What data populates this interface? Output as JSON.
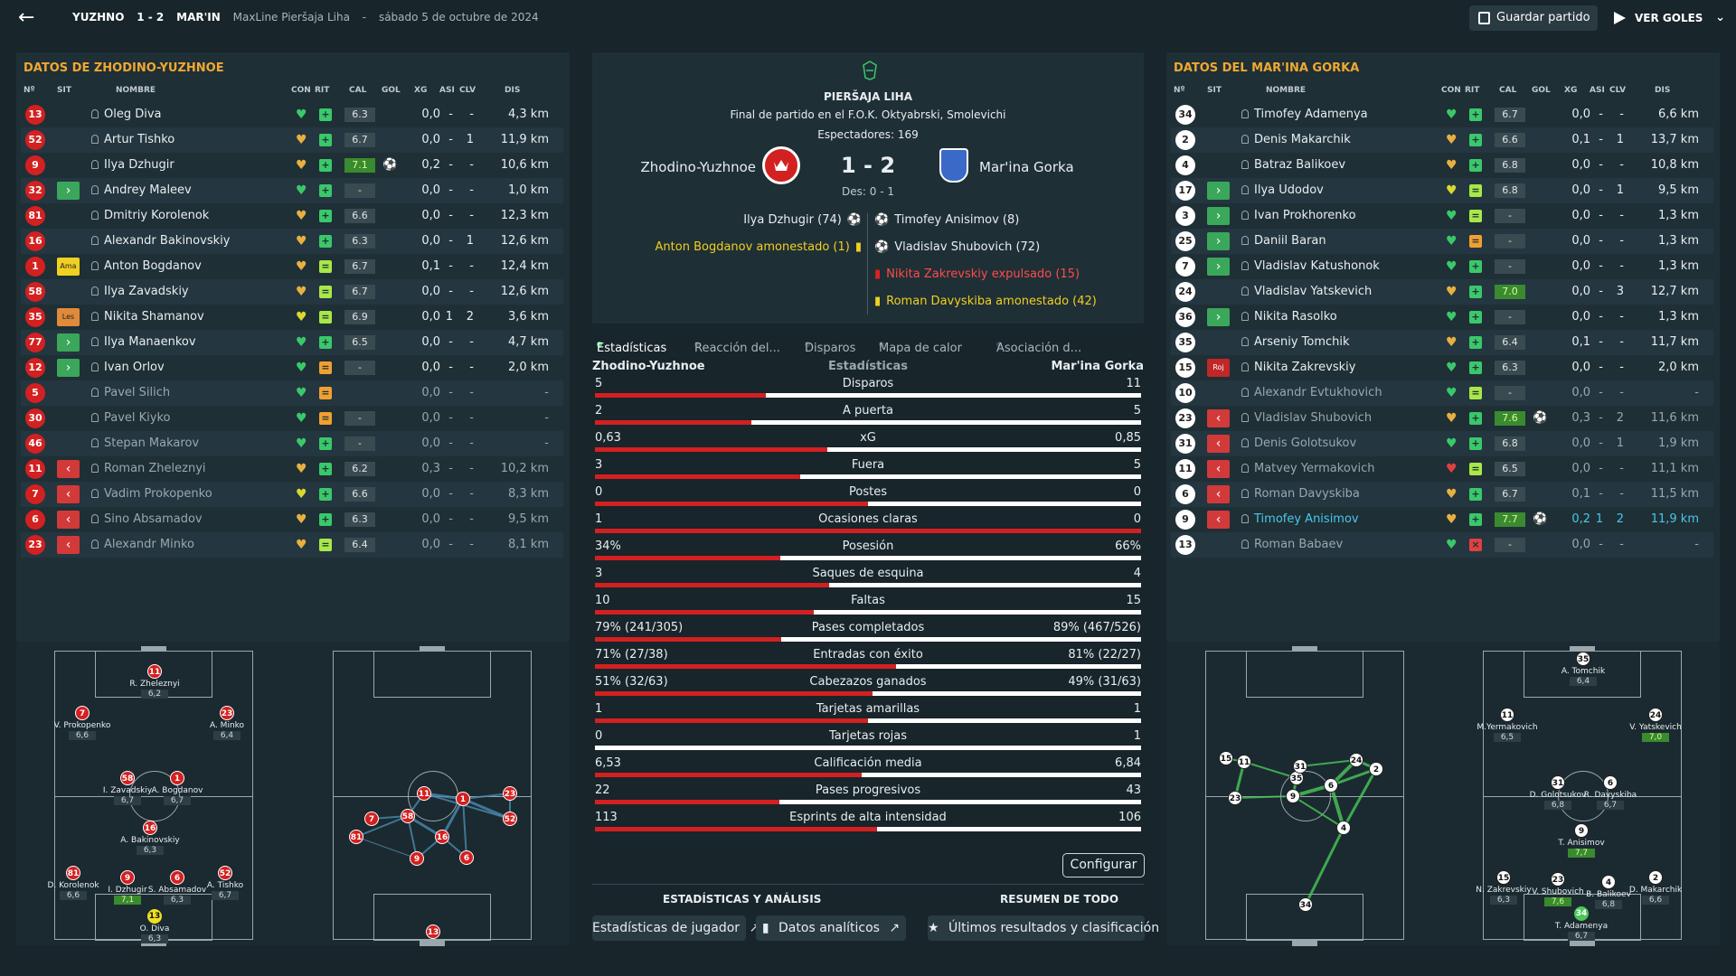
{
  "topbar": {
    "home_short": "YUZHNO",
    "score": "1 - 2",
    "away_short": "MAR'IN",
    "competition": "MaxLine Pieršaja Liha",
    "sep": "-",
    "date": "sábado 5 de octubre de 2024",
    "save_label": "Guardar partido",
    "goals_label": "VER GOLES"
  },
  "left_team": {
    "title": "DATOS DE ZHODINO-YUZHNOE",
    "headers": [
      "Nº",
      "SIT",
      "NOMBRE",
      "CON",
      "RIT",
      "CAL",
      "GOL",
      "XG",
      "ASI",
      "CLV",
      "DIS"
    ],
    "players": [
      {
        "n": "13",
        "sit": "",
        "name": "Oleg Diva",
        "con": "g",
        "rit": "up",
        "cal": "6.3",
        "gol": "",
        "xg": "0,0",
        "asi": "-",
        "clv": "-",
        "dis": "4,3 km"
      },
      {
        "n": "52",
        "sit": "",
        "name": "Artur Tishko",
        "con": "o",
        "rit": "up",
        "cal": "6.7",
        "gol": "",
        "xg": "0,0",
        "asi": "-",
        "clv": "1",
        "dis": "11,9 km"
      },
      {
        "n": "9",
        "sit": "",
        "name": "Ilya Dzhugir",
        "con": "o",
        "rit": "up",
        "cal": "7.1",
        "calg": true,
        "gol": "ball",
        "xg": "0,2",
        "asi": "-",
        "clv": "-",
        "dis": "10,6 km"
      },
      {
        "n": "32",
        "sit": "in",
        "name": "Andrey Maleev",
        "con": "g",
        "rit": "up",
        "cal": "-",
        "gol": "",
        "xg": "0,0",
        "asi": "-",
        "clv": "-",
        "dis": "1,0 km"
      },
      {
        "n": "81",
        "sit": "",
        "name": "Dmitriy Korolenok",
        "con": "o",
        "rit": "up",
        "cal": "6.6",
        "gol": "",
        "xg": "0,0",
        "asi": "-",
        "clv": "-",
        "dis": "12,3 km"
      },
      {
        "n": "16",
        "sit": "",
        "name": "Alexandr Bakinovskiy",
        "con": "o",
        "rit": "up",
        "cal": "6.3",
        "gol": "",
        "xg": "0,0",
        "asi": "-",
        "clv": "1",
        "dis": "12,6 km"
      },
      {
        "n": "1",
        "sit": "ama",
        "sit_label": "Ama",
        "name": "Anton Bogdanov",
        "con": "o",
        "rit": "eq",
        "cal": "6.7",
        "gol": "",
        "xg": "0,1",
        "asi": "-",
        "clv": "-",
        "dis": "12,4 km"
      },
      {
        "n": "58",
        "sit": "",
        "name": "Ilya Zavadskiy",
        "con": "o",
        "rit": "eq",
        "cal": "6.7",
        "gol": "",
        "xg": "0,0",
        "asi": "-",
        "clv": "-",
        "dis": "12,6 km"
      },
      {
        "n": "35",
        "sit": "les",
        "sit_label": "Les",
        "name": "Nikita Shamanov",
        "con": "y",
        "rit": "eq",
        "cal": "6.9",
        "gol": "",
        "xg": "0,0",
        "asi": "1",
        "clv": "2",
        "dis": "3,6 km"
      },
      {
        "n": "77",
        "sit": "in",
        "name": "Ilya Manaenkov",
        "con": "g",
        "rit": "up",
        "cal": "6.5",
        "gol": "",
        "xg": "0,0",
        "asi": "-",
        "clv": "-",
        "dis": "4,7 km"
      },
      {
        "n": "12",
        "sit": "in",
        "name": "Ivan Orlov",
        "con": "g",
        "rit": "or",
        "cal": "-",
        "gol": "",
        "xg": "0,0",
        "asi": "-",
        "clv": "-",
        "dis": "2,0 km"
      },
      {
        "n": "5",
        "sit": "",
        "name": "Pavel Silich",
        "con": "g",
        "rit": "or",
        "cal": "",
        "gol": "",
        "xg": "0,0",
        "asi": "-",
        "clv": "-",
        "dis": "-",
        "dim": true
      },
      {
        "n": "30",
        "sit": "",
        "name": "Pavel Kiyko",
        "con": "g",
        "rit": "or",
        "cal": "-",
        "gol": "",
        "xg": "0,0",
        "asi": "-",
        "clv": "-",
        "dis": "-",
        "dim": true
      },
      {
        "n": "46",
        "sit": "",
        "name": "Stepan Makarov",
        "con": "g",
        "rit": "up",
        "cal": "-",
        "gol": "",
        "xg": "0,0",
        "asi": "-",
        "clv": "-",
        "dis": "-",
        "dim": true
      },
      {
        "n": "11",
        "sit": "out",
        "name": "Roman Zheleznyi",
        "con": "o",
        "rit": "up",
        "cal": "6.2",
        "gol": "",
        "xg": "0,3",
        "asi": "-",
        "clv": "-",
        "dis": "10,2 km",
        "dim": true
      },
      {
        "n": "7",
        "sit": "out",
        "name": "Vadim Prokopenko",
        "con": "y",
        "rit": "up",
        "cal": "6.6",
        "gol": "",
        "xg": "0,0",
        "asi": "-",
        "clv": "-",
        "dis": "8,3 km",
        "dim": true
      },
      {
        "n": "6",
        "sit": "out",
        "name": "Sino Absamadov",
        "con": "o",
        "rit": "up",
        "cal": "6.3",
        "gol": "",
        "xg": "0,0",
        "asi": "-",
        "clv": "-",
        "dis": "9,5 km",
        "dim": true
      },
      {
        "n": "23",
        "sit": "out",
        "name": "Alexandr Minko",
        "con": "o",
        "rit": "eq",
        "cal": "6.4",
        "gol": "",
        "xg": "0,0",
        "asi": "-",
        "clv": "-",
        "dis": "8,1 km",
        "dim": true
      }
    ]
  },
  "right_team": {
    "title": "DATOS DEL MAR'INA GORKA",
    "headers": [
      "Nº",
      "SIT",
      "NOMBRE",
      "CON",
      "RIT",
      "CAL",
      "GOL",
      "XG",
      "ASI",
      "CLV",
      "DIS"
    ],
    "players": [
      {
        "n": "34",
        "sit": "",
        "name": "Timofey Adamenya",
        "con": "g",
        "rit": "up",
        "cal": "6.7",
        "gol": "",
        "xg": "0,0",
        "asi": "-",
        "clv": "-",
        "dis": "6,6 km"
      },
      {
        "n": "2",
        "sit": "",
        "name": "Denis Makarchik",
        "con": "o",
        "rit": "up",
        "cal": "6.6",
        "gol": "",
        "xg": "0,1",
        "asi": "-",
        "clv": "1",
        "dis": "13,7 km"
      },
      {
        "n": "4",
        "sit": "",
        "name": "Batraz Balikoev",
        "con": "o",
        "rit": "up",
        "cal": "6.8",
        "gol": "",
        "xg": "0,0",
        "asi": "-",
        "clv": "-",
        "dis": "10,8 km"
      },
      {
        "n": "17",
        "sit": "in",
        "name": "Ilya Udodov",
        "con": "y",
        "rit": "eq",
        "cal": "6.8",
        "gol": "",
        "xg": "0,0",
        "asi": "-",
        "clv": "1",
        "dis": "9,5 km"
      },
      {
        "n": "3",
        "sit": "in",
        "name": "Ivan Prokhorenko",
        "con": "g",
        "rit": "eq",
        "cal": "-",
        "gol": "",
        "xg": "0,0",
        "asi": "-",
        "clv": "-",
        "dis": "1,3 km"
      },
      {
        "n": "25",
        "sit": "in",
        "name": "Daniil Baran",
        "con": "g",
        "rit": "or",
        "cal": "-",
        "gol": "",
        "xg": "0,0",
        "asi": "-",
        "clv": "-",
        "dis": "1,3 km"
      },
      {
        "n": "7",
        "sit": "in",
        "name": "Vladislav Katushonok",
        "con": "g",
        "rit": "up",
        "cal": "-",
        "gol": "",
        "xg": "0,0",
        "asi": "-",
        "clv": "-",
        "dis": "1,3 km"
      },
      {
        "n": "24",
        "sit": "",
        "name": "Vladislav Yatskevich",
        "con": "o",
        "rit": "up",
        "cal": "7.0",
        "calg": true,
        "gol": "",
        "xg": "0,0",
        "asi": "-",
        "clv": "3",
        "dis": "12,7 km"
      },
      {
        "n": "36",
        "sit": "in",
        "name": "Nikita Rasolko",
        "con": "g",
        "rit": "up",
        "cal": "-",
        "gol": "",
        "xg": "0,0",
        "asi": "-",
        "clv": "-",
        "dis": "1,3 km"
      },
      {
        "n": "35",
        "sit": "",
        "name": "Arseniy Tomchik",
        "con": "o",
        "rit": "up",
        "cal": "6.4",
        "gol": "",
        "xg": "0,1",
        "asi": "-",
        "clv": "-",
        "dis": "11,7 km"
      },
      {
        "n": "15",
        "sit": "roj",
        "sit_label": "Roj",
        "name": "Nikita Zakrevskiy",
        "con": "g",
        "rit": "up",
        "cal": "6.3",
        "gol": "",
        "xg": "0,0",
        "asi": "-",
        "clv": "-",
        "dis": "2,0 km"
      },
      {
        "n": "10",
        "sit": "",
        "name": "Alexandr Evtukhovich",
        "con": "g",
        "rit": "eq",
        "cal": "-",
        "gol": "",
        "xg": "0,0",
        "asi": "-",
        "clv": "-",
        "dis": "-",
        "dim": true
      },
      {
        "n": "23",
        "sit": "out",
        "name": "Vladislav Shubovich",
        "con": "o",
        "rit": "up",
        "cal": "7.6",
        "calg": true,
        "gol": "ball",
        "xg": "0,3",
        "asi": "-",
        "clv": "2",
        "dis": "11,6 km",
        "dim": true
      },
      {
        "n": "31",
        "sit": "out",
        "name": "Denis Golotsukov",
        "con": "g",
        "rit": "up",
        "cal": "6.8",
        "gol": "",
        "xg": "0,0",
        "asi": "-",
        "clv": "1",
        "dis": "1,9 km",
        "dim": true
      },
      {
        "n": "11",
        "sit": "out",
        "name": "Matvey Yermakovich",
        "con": "r",
        "rit": "eq",
        "cal": "6.5",
        "gol": "",
        "xg": "0,0",
        "asi": "-",
        "clv": "-",
        "dis": "11,1 km",
        "dim": true
      },
      {
        "n": "6",
        "sit": "out",
        "name": "Roman Davyskiba",
        "con": "o",
        "rit": "up",
        "cal": "6.7",
        "gol": "",
        "xg": "0,1",
        "asi": "-",
        "clv": "-",
        "dis": "11,5 km",
        "dim": true
      },
      {
        "n": "9",
        "sit": "out",
        "name": "Timofey Anisimov",
        "con": "o",
        "rit": "up",
        "cal": "7.7",
        "calg": true,
        "gol": "ball",
        "xg": "0,2",
        "asi": "1",
        "clv": "2",
        "dis": "11,9 km",
        "hl": true
      },
      {
        "n": "13",
        "sit": "",
        "name": "Roman Babaev",
        "con": "g",
        "rit": "x",
        "cal": "-",
        "gol": "",
        "xg": "0,0",
        "asi": "-",
        "clv": "-",
        "dis": "-",
        "dim": true
      }
    ]
  },
  "match": {
    "league": "PIERŠAJA LIHA",
    "venue": "Final de partido en el F.O.K. Oktyabrski, Smolevichi",
    "attendance": "Espectadores: 169",
    "home": "Zhodino-Yuzhnoe",
    "away": "Mar'ina Gorka",
    "score": "1 - 2",
    "halftime": "Des: 0 - 1",
    "home_events": [
      {
        "text": "Ilya Dzhugir (74)",
        "type": "goal"
      },
      {
        "text": "Anton Bogdanov amonestado (1)",
        "type": "yellow"
      }
    ],
    "away_events": [
      {
        "text": "Timofey Anisimov (8)",
        "type": "goal"
      },
      {
        "text": "Vladislav Shubovich (72)",
        "type": "goal"
      },
      {
        "text": "Nikita Zakrevskiy expulsado (15)",
        "type": "red"
      },
      {
        "text": "Roman Davyskiba amonestado (42)",
        "type": "yellow"
      }
    ]
  },
  "tabs": [
    "Estadísticas",
    "Reacción del...",
    "Disparos",
    "Mapa de calor",
    "Asociación d..."
  ],
  "stats": {
    "home_label": "Zhodino-Yuzhnoe",
    "center_label": "Estadísticas",
    "away_label": "Mar'ina Gorka",
    "rows": [
      {
        "label": "Disparos",
        "home": "5",
        "away": "11",
        "h": 5,
        "a": 11
      },
      {
        "label": "A puerta",
        "home": "2",
        "away": "5",
        "h": 2,
        "a": 5
      },
      {
        "label": "xG",
        "home": "0,63",
        "away": "0,85",
        "h": 0.63,
        "a": 0.85
      },
      {
        "label": "Fuera",
        "home": "3",
        "away": "5",
        "h": 3,
        "a": 5
      },
      {
        "label": "Postes",
        "home": "0",
        "away": "0",
        "h": 0,
        "a": 0
      },
      {
        "label": "Ocasiones claras",
        "home": "1",
        "away": "0",
        "h": 1,
        "a": 0
      },
      {
        "label": "Posesión",
        "home": "34%",
        "away": "66%",
        "h": 34,
        "a": 66
      },
      {
        "label": "Saques de esquina",
        "home": "3",
        "away": "4",
        "h": 3,
        "a": 4
      },
      {
        "label": "Faltas",
        "home": "10",
        "away": "15",
        "h": 10,
        "a": 15
      },
      {
        "label": "Pases completados",
        "home": "79% (241/305)",
        "away": "89% (467/526)",
        "h": 241,
        "a": 467
      },
      {
        "label": "Entradas con éxito",
        "home": "71% (27/38)",
        "away": "81% (22/27)",
        "h": 27,
        "a": 22
      },
      {
        "label": "Cabezazos ganados",
        "home": "51% (32/63)",
        "away": "49% (31/63)",
        "h": 32,
        "a": 31
      },
      {
        "label": "Tarjetas amarillas",
        "home": "1",
        "away": "1",
        "h": 1,
        "a": 1
      },
      {
        "label": "Tarjetas rojas",
        "home": "0",
        "away": "1",
        "h": 0,
        "a": 1
      },
      {
        "label": "Calificación media",
        "home": "6,53",
        "away": "6,84",
        "h": 6.53,
        "a": 6.84
      },
      {
        "label": "Pases progresivos",
        "home": "22",
        "away": "43",
        "h": 22,
        "a": 43
      },
      {
        "label": "Esprints de alta intensidad",
        "home": "113",
        "away": "106",
        "h": 113,
        "a": 106
      }
    ]
  },
  "bottom": {
    "configure": "Configurar",
    "sec1": "ESTADÍSTICAS Y ANÁLISIS",
    "sec2": "RESUMEN DE TODO",
    "btn1": "Estadísticas de jugador",
    "btn2": "Datos analíticos",
    "btn3": "Últimos resultados y clasificación"
  },
  "home_formation": [
    {
      "n": "11",
      "name": "R. Zheleznyi",
      "rt": "6,2"
    },
    {
      "n": "7",
      "name": "V. Prokopenko",
      "rt": "6,6"
    },
    {
      "n": "23",
      "name": "A. Minko",
      "rt": "6,4"
    },
    {
      "n": "58",
      "name": "I. Zavadskiy",
      "rt": "6,7"
    },
    {
      "n": "1",
      "name": "A. Bogdanov",
      "rt": "6,7"
    },
    {
      "n": "16",
      "name": "A. Bakinovskiy",
      "rt": "6,3"
    },
    {
      "n": "81",
      "name": "D. Korolenok",
      "rt": "6,6"
    },
    {
      "n": "9",
      "name": "I. Dzhugir",
      "rt": "7,1",
      "g": true
    },
    {
      "n": "6",
      "name": "S. Absamadov",
      "rt": "6,3"
    },
    {
      "n": "52",
      "name": "A. Tishko",
      "rt": "6,7"
    },
    {
      "n": "13",
      "name": "O. Diva",
      "rt": "6,3",
      "gk": true
    }
  ],
  "away_formation": [
    {
      "n": "35",
      "name": "A. Tomchik",
      "rt": "6,4"
    },
    {
      "n": "11",
      "name": "M.Yermakovich",
      "rt": "6,5"
    },
    {
      "n": "24",
      "name": "V. Yatskevich",
      "rt": "7,0",
      "g": true
    },
    {
      "n": "31",
      "name": "D. Golotsukov",
      "rt": "6,8"
    },
    {
      "n": "6",
      "name": "R. Davyskiba",
      "rt": "6,7"
    },
    {
      "n": "9",
      "name": "T. Anisimov",
      "rt": "7,7",
      "g": true
    },
    {
      "n": "15",
      "name": "N. Zakrevskiy",
      "rt": "6,3"
    },
    {
      "n": "23",
      "name": "V. Shubovich",
      "rt": "7,6",
      "g": true
    },
    {
      "n": "4",
      "name": "B. Balikoev",
      "rt": "6,8"
    },
    {
      "n": "2",
      "name": "D. Makarchik",
      "rt": "6,6"
    },
    {
      "n": "34",
      "name": "T. Adamenya",
      "rt": "6,7",
      "gk": true
    }
  ],
  "home_pass_nodes": [
    "7",
    "58",
    "81",
    "9",
    "16",
    "11",
    "1",
    "23",
    "52",
    "6"
  ],
  "away_pass_nodes": [
    "15",
    "11",
    "23",
    "35",
    "31",
    "9",
    "6",
    "24",
    "2",
    "4",
    "34"
  ],
  "home_gk_node": "13",
  "colors": {
    "accent": "#f0a830",
    "home": "#d32020",
    "away": "#ffffff",
    "positive": "#3ac86a"
  }
}
